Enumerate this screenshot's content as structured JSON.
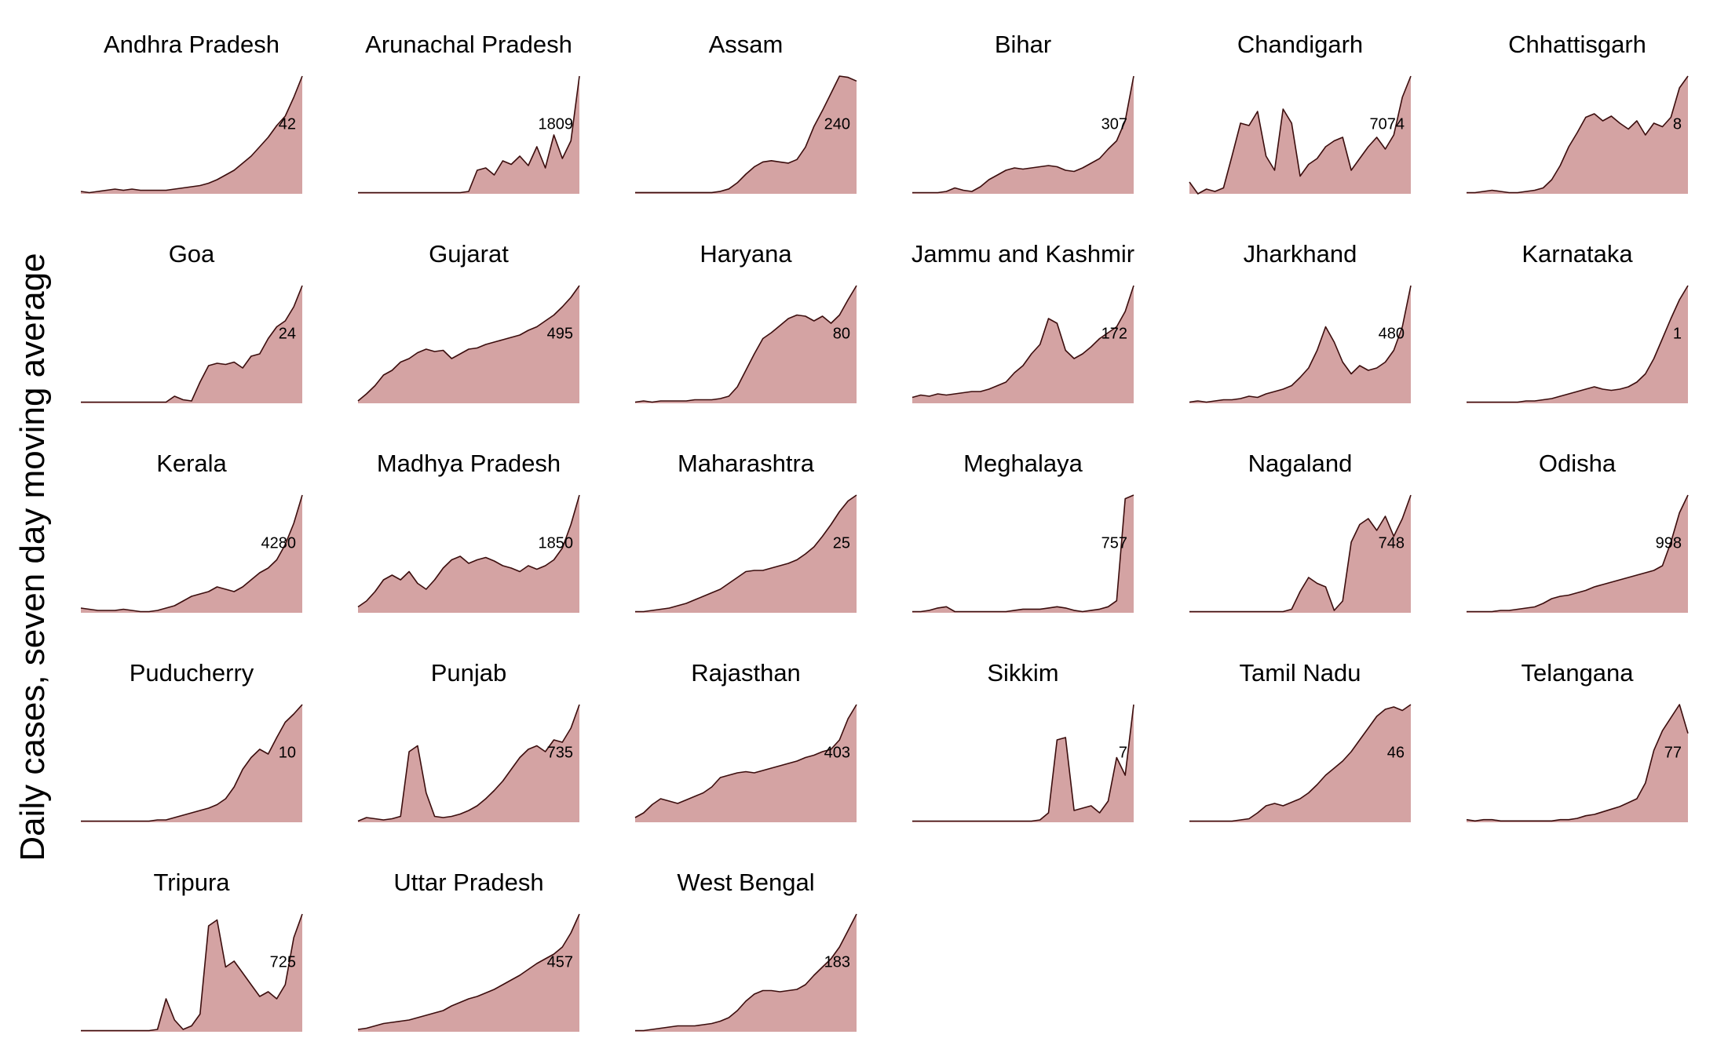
{
  "ylabel": "Daily cases, seven day moving average",
  "colors": {
    "fill": "#d4a3a3",
    "line": "#3b0d0d",
    "text": "#000000"
  },
  "chart_data": {
    "type": "area",
    "facet": "small-multiples",
    "ylabel": "Daily cases, seven day moving average",
    "grid": false,
    "axes_visible": false,
    "panels": [
      {
        "state": "Andhra Pradesh",
        "label": "42",
        "values": [
          2,
          1,
          2,
          3,
          4,
          3,
          4,
          3,
          3,
          3,
          3,
          4,
          5,
          6,
          7,
          9,
          12,
          16,
          20,
          26,
          32,
          40,
          48,
          58,
          66,
          82,
          100
        ]
      },
      {
        "state": "Arunachal Pradesh",
        "label": "1809",
        "values": [
          1,
          1,
          1,
          1,
          1,
          1,
          1,
          1,
          1,
          1,
          1,
          1,
          1,
          2,
          20,
          22,
          16,
          28,
          25,
          32,
          24,
          40,
          22,
          50,
          30,
          45,
          100
        ]
      },
      {
        "state": "Assam",
        "label": "240",
        "values": [
          1,
          1,
          1,
          1,
          1,
          1,
          1,
          1,
          1,
          1,
          2,
          4,
          9,
          16,
          22,
          26,
          27,
          26,
          25,
          28,
          38,
          55,
          68,
          82,
          96,
          95,
          92
        ]
      },
      {
        "state": "Bihar",
        "label": "307",
        "values": [
          1,
          1,
          1,
          1,
          2,
          5,
          3,
          2,
          6,
          12,
          16,
          20,
          22,
          21,
          22,
          23,
          24,
          23,
          20,
          19,
          22,
          26,
          30,
          38,
          45,
          62,
          100
        ]
      },
      {
        "state": "Chandigarh",
        "label": "7074",
        "values": [
          10,
          0,
          4,
          2,
          5,
          32,
          60,
          58,
          70,
          32,
          20,
          72,
          60,
          15,
          25,
          30,
          40,
          45,
          48,
          20,
          30,
          40,
          48,
          38,
          50,
          82,
          100
        ]
      },
      {
        "state": "Chhattisgarh",
        "label": "8",
        "values": [
          1,
          1,
          2,
          3,
          2,
          1,
          1,
          2,
          3,
          5,
          12,
          24,
          40,
          52,
          65,
          68,
          62,
          66,
          60,
          55,
          62,
          50,
          60,
          57,
          65,
          90,
          100
        ]
      },
      {
        "state": "Goa",
        "label": "24",
        "values": [
          1,
          1,
          1,
          1,
          1,
          1,
          1,
          1,
          1,
          1,
          1,
          6,
          3,
          2,
          18,
          32,
          34,
          33,
          35,
          30,
          40,
          42,
          55,
          65,
          70,
          82,
          100
        ]
      },
      {
        "state": "Gujarat",
        "label": "495",
        "values": [
          2,
          8,
          15,
          24,
          28,
          35,
          38,
          43,
          46,
          44,
          45,
          38,
          42,
          46,
          47,
          50,
          52,
          54,
          56,
          58,
          62,
          65,
          70,
          75,
          82,
          90,
          100
        ]
      },
      {
        "state": "Haryana",
        "label": "80",
        "values": [
          1,
          2,
          1,
          2,
          2,
          2,
          2,
          3,
          3,
          3,
          4,
          6,
          14,
          28,
          42,
          55,
          60,
          66,
          72,
          75,
          74,
          70,
          74,
          68,
          75,
          88,
          100
        ]
      },
      {
        "state": "Jammu and Kashmir",
        "label": "172",
        "values": [
          5,
          7,
          6,
          8,
          7,
          8,
          9,
          10,
          10,
          12,
          15,
          18,
          26,
          32,
          42,
          50,
          72,
          68,
          45,
          38,
          42,
          48,
          55,
          60,
          65,
          78,
          100
        ]
      },
      {
        "state": "Jharkhand",
        "label": "480",
        "values": [
          1,
          2,
          1,
          2,
          3,
          3,
          4,
          6,
          5,
          8,
          10,
          12,
          15,
          22,
          30,
          45,
          65,
          52,
          35,
          25,
          32,
          28,
          30,
          35,
          45,
          65,
          100
        ]
      },
      {
        "state": "Karnataka",
        "label": "1",
        "values": [
          1,
          1,
          1,
          1,
          1,
          1,
          1,
          2,
          2,
          3,
          4,
          6,
          8,
          10,
          12,
          14,
          12,
          11,
          12,
          14,
          18,
          25,
          38,
          55,
          72,
          88,
          100
        ]
      },
      {
        "state": "Kerala",
        "label": "4280",
        "values": [
          4,
          3,
          2,
          2,
          2,
          3,
          2,
          1,
          1,
          2,
          4,
          6,
          10,
          14,
          16,
          18,
          22,
          20,
          18,
          22,
          28,
          34,
          38,
          45,
          58,
          76,
          100
        ]
      },
      {
        "state": "Madhya Pradesh",
        "label": "1850",
        "values": [
          5,
          10,
          18,
          28,
          32,
          28,
          35,
          25,
          20,
          28,
          38,
          45,
          48,
          42,
          45,
          47,
          44,
          40,
          38,
          35,
          40,
          37,
          40,
          45,
          55,
          75,
          100
        ]
      },
      {
        "state": "Maharashtra",
        "label": "25",
        "values": [
          1,
          1,
          2,
          3,
          4,
          6,
          8,
          11,
          14,
          17,
          20,
          25,
          30,
          35,
          36,
          36,
          38,
          40,
          42,
          45,
          50,
          56,
          65,
          75,
          86,
          95,
          100
        ]
      },
      {
        "state": "Meghalaya",
        "label": "757",
        "values": [
          1,
          1,
          2,
          4,
          5,
          1,
          1,
          1,
          1,
          1,
          1,
          1,
          2,
          3,
          3,
          3,
          4,
          5,
          4,
          2,
          1,
          2,
          3,
          5,
          10,
          95,
          98
        ]
      },
      {
        "state": "Nagaland",
        "label": "748",
        "values": [
          1,
          1,
          1,
          1,
          1,
          1,
          1,
          1,
          1,
          1,
          1,
          1,
          3,
          18,
          30,
          25,
          22,
          2,
          10,
          60,
          75,
          80,
          70,
          82,
          65,
          80,
          100
        ]
      },
      {
        "state": "Odisha",
        "label": "998",
        "values": [
          1,
          1,
          1,
          1,
          2,
          2,
          3,
          4,
          5,
          8,
          12,
          14,
          15,
          17,
          19,
          22,
          24,
          26,
          28,
          30,
          32,
          34,
          36,
          40,
          60,
          85,
          100
        ]
      },
      {
        "state": "Puducherry",
        "label": "10",
        "values": [
          1,
          1,
          1,
          1,
          1,
          1,
          1,
          1,
          1,
          2,
          2,
          4,
          6,
          8,
          10,
          12,
          15,
          20,
          30,
          45,
          55,
          62,
          58,
          72,
          85,
          92,
          100
        ]
      },
      {
        "state": "Punjab",
        "label": "735",
        "values": [
          1,
          4,
          3,
          2,
          3,
          5,
          60,
          65,
          25,
          5,
          4,
          5,
          7,
          10,
          14,
          20,
          27,
          35,
          45,
          55,
          62,
          65,
          60,
          70,
          68,
          80,
          100
        ]
      },
      {
        "state": "Rajasthan",
        "label": "403",
        "values": [
          4,
          8,
          15,
          20,
          18,
          16,
          19,
          22,
          25,
          30,
          38,
          40,
          42,
          43,
          42,
          44,
          46,
          48,
          50,
          52,
          55,
          57,
          60,
          62,
          70,
          88,
          100
        ]
      },
      {
        "state": "Sikkim",
        "label": "7",
        "values": [
          1,
          1,
          1,
          1,
          1,
          1,
          1,
          1,
          1,
          1,
          1,
          1,
          1,
          1,
          1,
          2,
          8,
          70,
          72,
          10,
          12,
          14,
          8,
          18,
          55,
          40,
          100
        ]
      },
      {
        "state": "Tamil Nadu",
        "label": "46",
        "values": [
          1,
          1,
          1,
          1,
          1,
          1,
          2,
          3,
          8,
          14,
          16,
          14,
          17,
          20,
          25,
          32,
          40,
          46,
          52,
          60,
          70,
          80,
          90,
          96,
          98,
          95,
          100
        ]
      },
      {
        "state": "Telangana",
        "label": "77",
        "values": [
          2,
          1,
          2,
          2,
          1,
          1,
          1,
          1,
          1,
          1,
          1,
          2,
          2,
          3,
          5,
          6,
          8,
          10,
          12,
          15,
          18,
          30,
          55,
          70,
          80,
          90,
          68
        ]
      },
      {
        "state": "Tripura",
        "label": "725",
        "values": [
          1,
          1,
          1,
          1,
          1,
          1,
          1,
          1,
          1,
          2,
          28,
          10,
          2,
          5,
          15,
          90,
          95,
          55,
          60,
          50,
          40,
          30,
          34,
          28,
          40,
          80,
          100
        ]
      },
      {
        "state": "Uttar Pradesh",
        "label": "457",
        "values": [
          2,
          3,
          5,
          7,
          8,
          9,
          10,
          12,
          14,
          16,
          18,
          22,
          25,
          28,
          30,
          33,
          36,
          40,
          44,
          48,
          53,
          58,
          62,
          66,
          72,
          84,
          100
        ]
      },
      {
        "state": "West Bengal",
        "label": "183",
        "values": [
          1,
          1,
          2,
          3,
          4,
          5,
          5,
          5,
          6,
          7,
          9,
          12,
          18,
          26,
          32,
          35,
          35,
          34,
          35,
          36,
          40,
          48,
          55,
          62,
          72,
          86,
          100
        ]
      }
    ]
  }
}
